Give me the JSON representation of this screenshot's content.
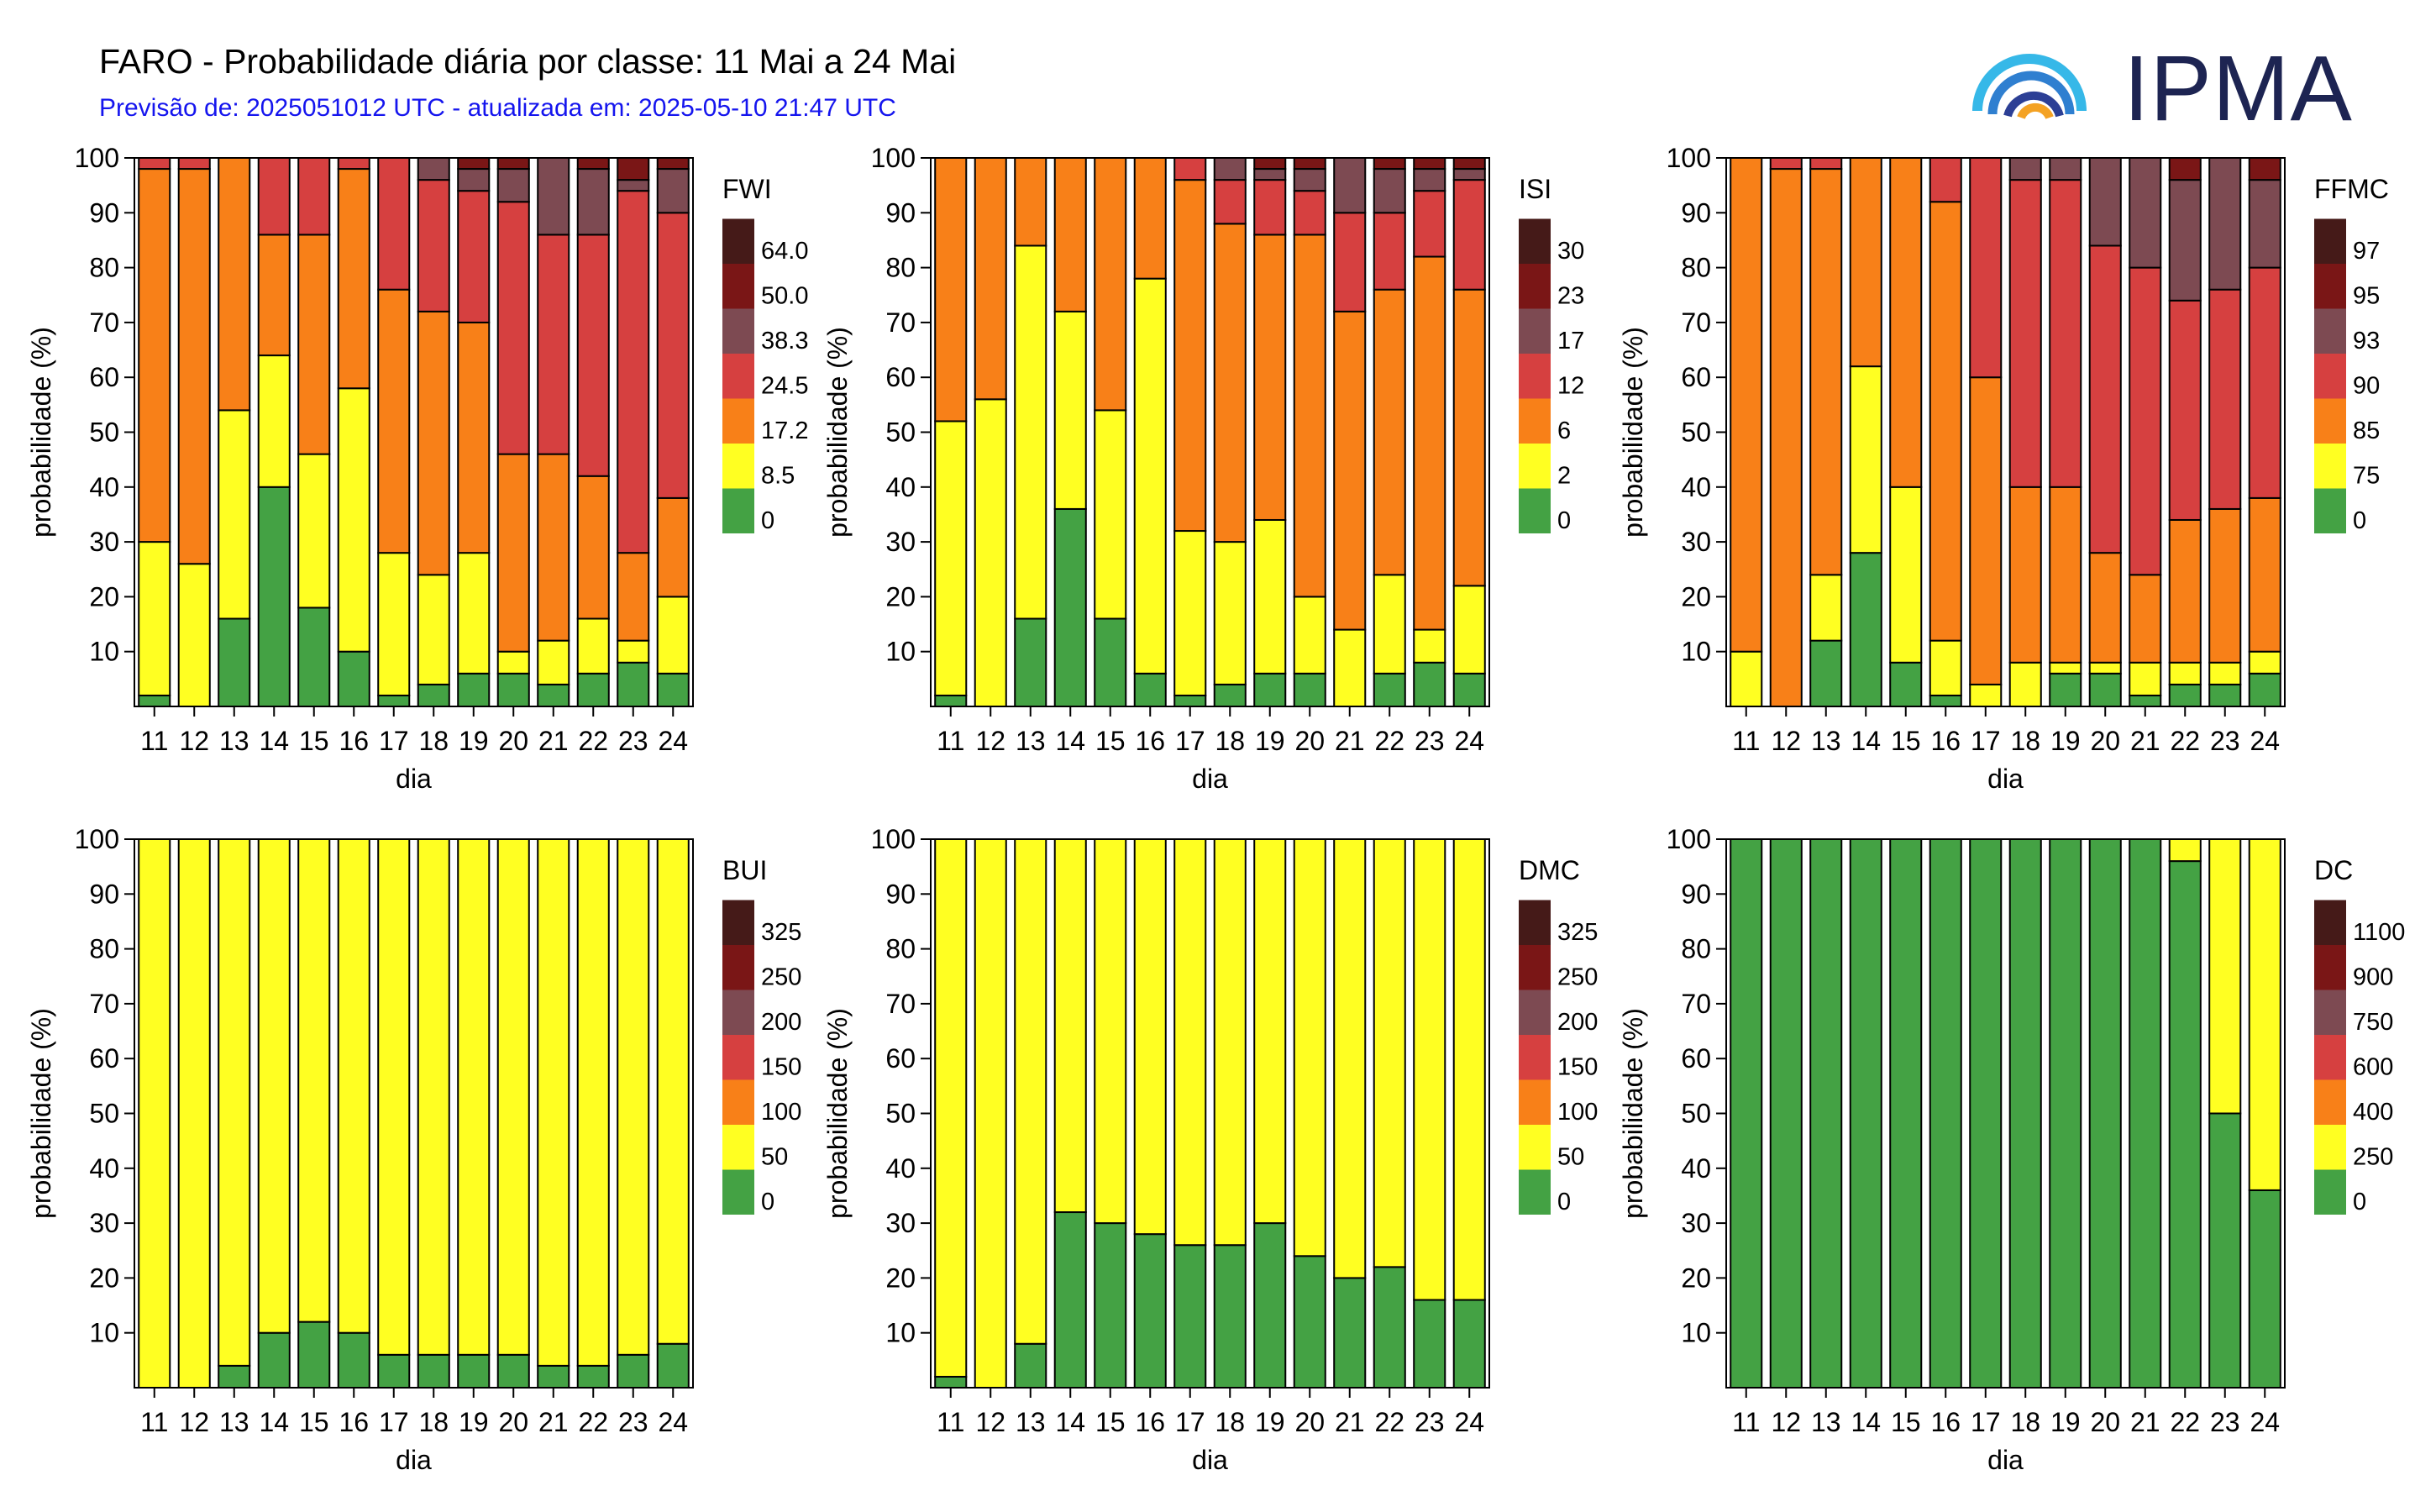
{
  "header": {
    "title": "FARO - Probabilidade diária por classe: 11 Mai a 24 Mai",
    "subtitle": "Previsão de: 2025051012 UTC - atualizada em: 2025-05-10 21:47 UTC",
    "logo_text": "IPMA"
  },
  "colors": {
    "classes": [
      "#44a244",
      "#ffff22",
      "#f88018",
      "#d64040",
      "#7d4a52",
      "#7a1616",
      "#451a18"
    ]
  },
  "chart_data": [
    {
      "type": "bar",
      "stacked": true,
      "index": "FWI",
      "legend_title": "FWI",
      "legend_labels": [
        "0",
        "8.5",
        "17.2",
        "24.5",
        "38.3",
        "50.0",
        "64.0"
      ],
      "categories": [
        "11",
        "12",
        "13",
        "14",
        "15",
        "16",
        "17",
        "18",
        "19",
        "20",
        "21",
        "22",
        "23",
        "24"
      ],
      "xlabel": "dia",
      "ylabel": "probabilidade (%)",
      "ylim": [
        0,
        100
      ],
      "yticks": [
        "10",
        "20",
        "30",
        "40",
        "50",
        "60",
        "70",
        "80",
        "90",
        "100"
      ],
      "stacks": [
        [
          2,
          28,
          68,
          2,
          0,
          0,
          0
        ],
        [
          0,
          26,
          72,
          2,
          0,
          0,
          0
        ],
        [
          16,
          38,
          46,
          0,
          0,
          0,
          0
        ],
        [
          40,
          24,
          22,
          14,
          0,
          0,
          0
        ],
        [
          18,
          28,
          40,
          14,
          0,
          0,
          0
        ],
        [
          10,
          48,
          40,
          2,
          0,
          0,
          0
        ],
        [
          2,
          26,
          48,
          24,
          0,
          0,
          0
        ],
        [
          4,
          20,
          48,
          24,
          4,
          0,
          0
        ],
        [
          6,
          22,
          42,
          24,
          4,
          2,
          0
        ],
        [
          6,
          4,
          36,
          46,
          6,
          2,
          0
        ],
        [
          4,
          8,
          34,
          40,
          14,
          0,
          0
        ],
        [
          6,
          10,
          26,
          44,
          12,
          2,
          0
        ],
        [
          8,
          4,
          16,
          66,
          2,
          4,
          0
        ],
        [
          6,
          14,
          18,
          52,
          8,
          2,
          0
        ]
      ]
    },
    {
      "type": "bar",
      "stacked": true,
      "index": "ISI",
      "legend_title": "ISI",
      "legend_labels": [
        "0",
        "2",
        "6",
        "12",
        "17",
        "23",
        "30"
      ],
      "categories": [
        "11",
        "12",
        "13",
        "14",
        "15",
        "16",
        "17",
        "18",
        "19",
        "20",
        "21",
        "22",
        "23",
        "24"
      ],
      "xlabel": "dia",
      "ylabel": "probabilidade (%)",
      "ylim": [
        0,
        100
      ],
      "yticks": [
        "10",
        "20",
        "30",
        "40",
        "50",
        "60",
        "70",
        "80",
        "90",
        "100"
      ],
      "stacks": [
        [
          2,
          50,
          48,
          0,
          0,
          0,
          0
        ],
        [
          0,
          56,
          44,
          0,
          0,
          0,
          0
        ],
        [
          16,
          68,
          16,
          0,
          0,
          0,
          0
        ],
        [
          36,
          36,
          28,
          0,
          0,
          0,
          0
        ],
        [
          16,
          38,
          46,
          0,
          0,
          0,
          0
        ],
        [
          6,
          72,
          22,
          0,
          0,
          0,
          0
        ],
        [
          2,
          30,
          64,
          4,
          0,
          0,
          0
        ],
        [
          4,
          26,
          58,
          8,
          4,
          0,
          0
        ],
        [
          6,
          28,
          52,
          10,
          2,
          2,
          0
        ],
        [
          6,
          14,
          66,
          8,
          4,
          2,
          0
        ],
        [
          0,
          14,
          58,
          18,
          10,
          0,
          0
        ],
        [
          6,
          18,
          52,
          14,
          8,
          2,
          0
        ],
        [
          8,
          6,
          68,
          12,
          4,
          2,
          0
        ],
        [
          6,
          16,
          54,
          20,
          2,
          2,
          0
        ]
      ]
    },
    {
      "type": "bar",
      "stacked": true,
      "index": "FFMC",
      "legend_title": "FFMC",
      "legend_labels": [
        "0",
        "75",
        "85",
        "90",
        "93",
        "95",
        "97"
      ],
      "categories": [
        "11",
        "12",
        "13",
        "14",
        "15",
        "16",
        "17",
        "18",
        "19",
        "20",
        "21",
        "22",
        "23",
        "24"
      ],
      "xlabel": "dia",
      "ylabel": "probabilidade (%)",
      "ylim": [
        0,
        100
      ],
      "yticks": [
        "10",
        "20",
        "30",
        "40",
        "50",
        "60",
        "70",
        "80",
        "90",
        "100"
      ],
      "stacks": [
        [
          0,
          10,
          90,
          0,
          0,
          0,
          0
        ],
        [
          0,
          0,
          98,
          2,
          0,
          0,
          0
        ],
        [
          12,
          12,
          74,
          2,
          0,
          0,
          0
        ],
        [
          28,
          34,
          38,
          0,
          0,
          0,
          0
        ],
        [
          8,
          32,
          60,
          0,
          0,
          0,
          0
        ],
        [
          2,
          10,
          80,
          8,
          0,
          0,
          0
        ],
        [
          0,
          4,
          56,
          40,
          0,
          0,
          0
        ],
        [
          0,
          8,
          32,
          56,
          4,
          0,
          0
        ],
        [
          6,
          2,
          32,
          56,
          4,
          0,
          0
        ],
        [
          6,
          2,
          20,
          56,
          16,
          0,
          0
        ],
        [
          2,
          6,
          16,
          56,
          20,
          0,
          0
        ],
        [
          4,
          4,
          26,
          40,
          22,
          4,
          0
        ],
        [
          4,
          4,
          28,
          40,
          24,
          0,
          0
        ],
        [
          6,
          4,
          28,
          42,
          16,
          4,
          0
        ]
      ]
    },
    {
      "type": "bar",
      "stacked": true,
      "index": "BUI",
      "legend_title": "BUI",
      "legend_labels": [
        "0",
        "50",
        "100",
        "150",
        "200",
        "250",
        "325"
      ],
      "categories": [
        "11",
        "12",
        "13",
        "14",
        "15",
        "16",
        "17",
        "18",
        "19",
        "20",
        "21",
        "22",
        "23",
        "24"
      ],
      "xlabel": "dia",
      "ylabel": "probabilidade (%)",
      "ylim": [
        0,
        100
      ],
      "yticks": [
        "10",
        "20",
        "30",
        "40",
        "50",
        "60",
        "70",
        "80",
        "90",
        "100"
      ],
      "stacks": [
        [
          0,
          100,
          0,
          0,
          0,
          0,
          0
        ],
        [
          0,
          100,
          0,
          0,
          0,
          0,
          0
        ],
        [
          4,
          96,
          0,
          0,
          0,
          0,
          0
        ],
        [
          10,
          90,
          0,
          0,
          0,
          0,
          0
        ],
        [
          12,
          88,
          0,
          0,
          0,
          0,
          0
        ],
        [
          10,
          90,
          0,
          0,
          0,
          0,
          0
        ],
        [
          6,
          94,
          0,
          0,
          0,
          0,
          0
        ],
        [
          6,
          94,
          0,
          0,
          0,
          0,
          0
        ],
        [
          6,
          94,
          0,
          0,
          0,
          0,
          0
        ],
        [
          6,
          94,
          0,
          0,
          0,
          0,
          0
        ],
        [
          4,
          96,
          0,
          0,
          0,
          0,
          0
        ],
        [
          4,
          96,
          0,
          0,
          0,
          0,
          0
        ],
        [
          6,
          94,
          0,
          0,
          0,
          0,
          0
        ],
        [
          8,
          92,
          0,
          0,
          0,
          0,
          0
        ]
      ]
    },
    {
      "type": "bar",
      "stacked": true,
      "index": "DMC",
      "legend_title": "DMC",
      "legend_labels": [
        "0",
        "50",
        "100",
        "150",
        "200",
        "250",
        "325"
      ],
      "categories": [
        "11",
        "12",
        "13",
        "14",
        "15",
        "16",
        "17",
        "18",
        "19",
        "20",
        "21",
        "22",
        "23",
        "24"
      ],
      "xlabel": "dia",
      "ylabel": "probabilidade (%)",
      "ylim": [
        0,
        100
      ],
      "yticks": [
        "10",
        "20",
        "30",
        "40",
        "50",
        "60",
        "70",
        "80",
        "90",
        "100"
      ],
      "stacks": [
        [
          2,
          98,
          0,
          0,
          0,
          0,
          0
        ],
        [
          0,
          100,
          0,
          0,
          0,
          0,
          0
        ],
        [
          8,
          92,
          0,
          0,
          0,
          0,
          0
        ],
        [
          32,
          68,
          0,
          0,
          0,
          0,
          0
        ],
        [
          30,
          70,
          0,
          0,
          0,
          0,
          0
        ],
        [
          28,
          72,
          0,
          0,
          0,
          0,
          0
        ],
        [
          26,
          74,
          0,
          0,
          0,
          0,
          0
        ],
        [
          26,
          74,
          0,
          0,
          0,
          0,
          0
        ],
        [
          30,
          70,
          0,
          0,
          0,
          0,
          0
        ],
        [
          24,
          76,
          0,
          0,
          0,
          0,
          0
        ],
        [
          20,
          80,
          0,
          0,
          0,
          0,
          0
        ],
        [
          22,
          78,
          0,
          0,
          0,
          0,
          0
        ],
        [
          16,
          84,
          0,
          0,
          0,
          0,
          0
        ],
        [
          16,
          84,
          0,
          0,
          0,
          0,
          0
        ]
      ]
    },
    {
      "type": "bar",
      "stacked": true,
      "index": "DC",
      "legend_title": "DC",
      "legend_labels": [
        "0",
        "250",
        "400",
        "600",
        "750",
        "900",
        "1100"
      ],
      "categories": [
        "11",
        "12",
        "13",
        "14",
        "15",
        "16",
        "17",
        "18",
        "19",
        "20",
        "21",
        "22",
        "23",
        "24"
      ],
      "xlabel": "dia",
      "ylabel": "probabilidade (%)",
      "ylim": [
        0,
        100
      ],
      "yticks": [
        "10",
        "20",
        "30",
        "40",
        "50",
        "60",
        "70",
        "80",
        "90",
        "100"
      ],
      "stacks": [
        [
          100,
          0,
          0,
          0,
          0,
          0,
          0
        ],
        [
          100,
          0,
          0,
          0,
          0,
          0,
          0
        ],
        [
          100,
          0,
          0,
          0,
          0,
          0,
          0
        ],
        [
          100,
          0,
          0,
          0,
          0,
          0,
          0
        ],
        [
          100,
          0,
          0,
          0,
          0,
          0,
          0
        ],
        [
          100,
          0,
          0,
          0,
          0,
          0,
          0
        ],
        [
          100,
          0,
          0,
          0,
          0,
          0,
          0
        ],
        [
          100,
          0,
          0,
          0,
          0,
          0,
          0
        ],
        [
          100,
          0,
          0,
          0,
          0,
          0,
          0
        ],
        [
          100,
          0,
          0,
          0,
          0,
          0,
          0
        ],
        [
          100,
          0,
          0,
          0,
          0,
          0,
          0
        ],
        [
          96,
          4,
          0,
          0,
          0,
          0,
          0
        ],
        [
          50,
          50,
          0,
          0,
          0,
          0,
          0
        ],
        [
          36,
          64,
          0,
          0,
          0,
          0,
          0
        ]
      ]
    }
  ]
}
